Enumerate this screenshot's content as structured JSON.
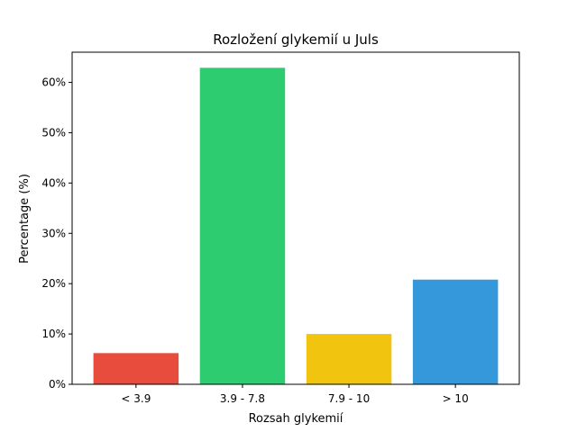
{
  "chart_data": {
    "type": "bar",
    "title": "Rozložení glykemií u  Juls",
    "xlabel": "Rozsah glykemií",
    "ylabel": "Percentage (%)",
    "categories": [
      "< 3.9",
      "3.9 - 7.8",
      "7.9 - 10",
      "> 10"
    ],
    "values": [
      6.2,
      62.9,
      10.0,
      20.8
    ],
    "colors": [
      "#e74c3c",
      "#2ecc71",
      "#f1c40f",
      "#3498db"
    ],
    "ylim": [
      0,
      66
    ],
    "yticks": [
      0,
      10,
      20,
      30,
      40,
      50,
      60
    ],
    "ytick_labels": [
      "0%",
      "10%",
      "20%",
      "30%",
      "40%",
      "50%",
      "60%"
    ],
    "grid": false,
    "legend": "none"
  }
}
